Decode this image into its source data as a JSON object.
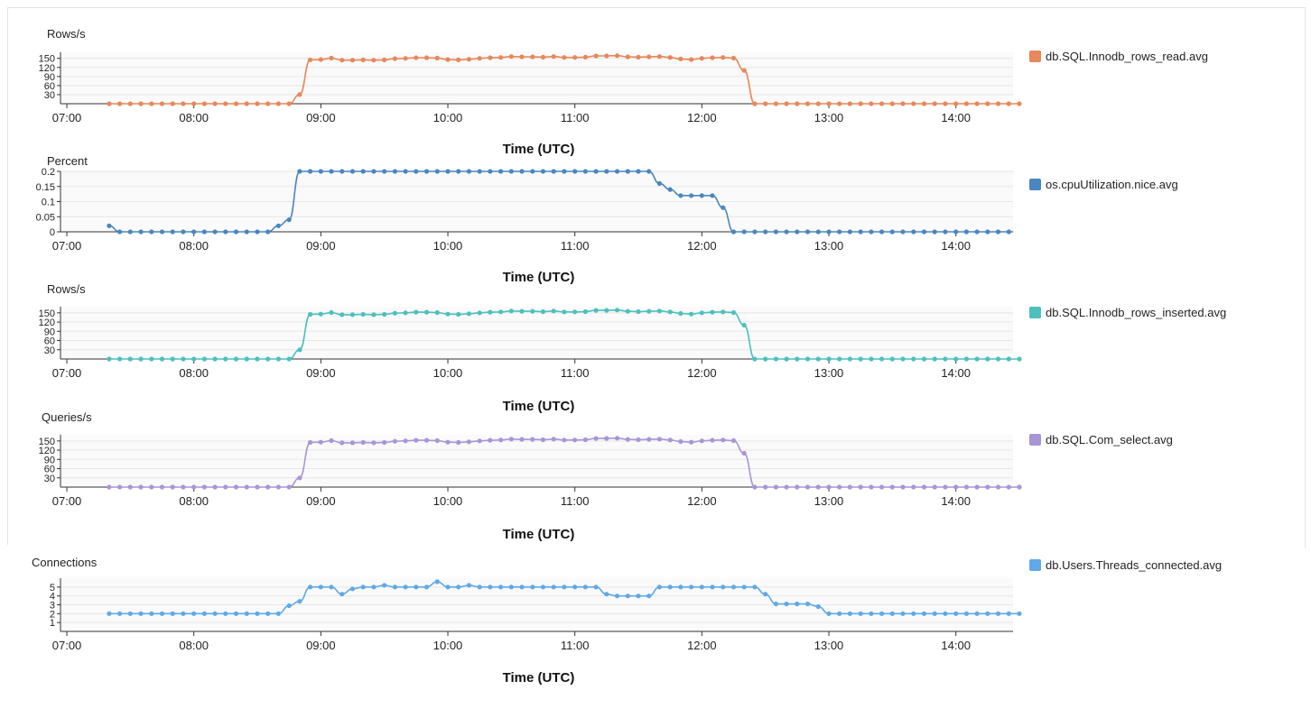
{
  "chart_data": [
    {
      "type": "line",
      "ylabel": "Rows/s",
      "xlabel": "Time (UTC)",
      "x_ticks": [
        "07:00",
        "08:00",
        "09:00",
        "10:00",
        "11:00",
        "12:00",
        "13:00",
        "14:00"
      ],
      "y_ticks": [
        "30",
        "60",
        "90",
        "120",
        "150"
      ],
      "y_range": [
        0,
        170
      ],
      "x_range_hours": [
        6.95,
        14.45
      ],
      "x_start_hour": 7.333,
      "x_step_minutes": 5,
      "grid": true,
      "legend_position": "right",
      "series": [
        {
          "name": "db.SQL.Innodb_rows_read.avg",
          "color": "#e8875a",
          "values": [
            0,
            0,
            0,
            0,
            0,
            0,
            0,
            0,
            0,
            0,
            0,
            0,
            0,
            0,
            0,
            0,
            0,
            0,
            30,
            145,
            146,
            151,
            144,
            144,
            145,
            144,
            145,
            149,
            150,
            152,
            152,
            151,
            146,
            145,
            147,
            150,
            152,
            153,
            156,
            155,
            155,
            154,
            156,
            153,
            153,
            154,
            158,
            158,
            159,
            155,
            154,
            155,
            156,
            153,
            148,
            146,
            150,
            152,
            153,
            151,
            110,
            0,
            0,
            0,
            0,
            0,
            0,
            0,
            0,
            0,
            0,
            0,
            0,
            0,
            0,
            0,
            0,
            0,
            0,
            0,
            0,
            0,
            0,
            0,
            0,
            0,
            0
          ]
        }
      ]
    },
    {
      "type": "line",
      "ylabel": "Percent",
      "xlabel": "Time (UTC)",
      "x_ticks": [
        "07:00",
        "08:00",
        "09:00",
        "10:00",
        "11:00",
        "12:00",
        "13:00",
        "14:00"
      ],
      "y_ticks": [
        "0",
        "0.05",
        "0.1",
        "0.15",
        "0.2"
      ],
      "y_range": [
        0,
        0.2
      ],
      "x_range_hours": [
        6.95,
        14.45
      ],
      "x_start_hour": 7.333,
      "x_step_minutes": 5,
      "grid": true,
      "legend_position": "right",
      "series": [
        {
          "name": "os.cpuUtilization.nice.avg",
          "color": "#4a86c0",
          "values": [
            0.02,
            0,
            0,
            0,
            0,
            0,
            0,
            0,
            0,
            0,
            0,
            0,
            0,
            0,
            0,
            0,
            0.02,
            0.04,
            0.2,
            0.2,
            0.2,
            0.2,
            0.2,
            0.2,
            0.2,
            0.2,
            0.2,
            0.2,
            0.2,
            0.2,
            0.2,
            0.2,
            0.2,
            0.2,
            0.2,
            0.2,
            0.2,
            0.2,
            0.2,
            0.2,
            0.2,
            0.2,
            0.2,
            0.2,
            0.2,
            0.2,
            0.2,
            0.2,
            0.2,
            0.2,
            0.2,
            0.2,
            0.16,
            0.14,
            0.12,
            0.12,
            0.12,
            0.12,
            0.08,
            0,
            0,
            0,
            0,
            0,
            0,
            0,
            0,
            0,
            0,
            0,
            0,
            0,
            0,
            0,
            0,
            0,
            0,
            0,
            0,
            0,
            0,
            0,
            0,
            0,
            0,
            0
          ]
        }
      ]
    },
    {
      "type": "line",
      "ylabel": "Rows/s",
      "xlabel": "Time (UTC)",
      "x_ticks": [
        "07:00",
        "08:00",
        "09:00",
        "10:00",
        "11:00",
        "12:00",
        "13:00",
        "14:00"
      ],
      "y_ticks": [
        "30",
        "60",
        "90",
        "120",
        "150"
      ],
      "y_range": [
        0,
        170
      ],
      "x_range_hours": [
        6.95,
        14.45
      ],
      "x_start_hour": 7.333,
      "x_step_minutes": 5,
      "grid": true,
      "legend_position": "right",
      "series": [
        {
          "name": "db.SQL.Innodb_rows_inserted.avg",
          "color": "#4cc0bd",
          "values": [
            0,
            0,
            0,
            0,
            0,
            0,
            0,
            0,
            0,
            0,
            0,
            0,
            0,
            0,
            0,
            0,
            0,
            0,
            30,
            145,
            146,
            151,
            144,
            144,
            145,
            144,
            145,
            149,
            150,
            152,
            152,
            151,
            146,
            145,
            147,
            150,
            152,
            153,
            156,
            155,
            155,
            154,
            156,
            153,
            153,
            154,
            158,
            158,
            159,
            155,
            154,
            155,
            156,
            153,
            148,
            146,
            150,
            152,
            153,
            151,
            110,
            0,
            0,
            0,
            0,
            0,
            0,
            0,
            0,
            0,
            0,
            0,
            0,
            0,
            0,
            0,
            0,
            0,
            0,
            0,
            0,
            0,
            0,
            0,
            0,
            0,
            0
          ]
        }
      ]
    },
    {
      "type": "line",
      "ylabel": "Queries/s",
      "xlabel": "Time (UTC)",
      "x_ticks": [
        "07:00",
        "08:00",
        "09:00",
        "10:00",
        "11:00",
        "12:00",
        "13:00",
        "14:00"
      ],
      "y_ticks": [
        "30",
        "60",
        "90",
        "120",
        "150"
      ],
      "y_range": [
        0,
        170
      ],
      "x_range_hours": [
        6.95,
        14.45
      ],
      "x_start_hour": 7.333,
      "x_step_minutes": 5,
      "grid": true,
      "legend_position": "right",
      "series": [
        {
          "name": "db.SQL.Com_select.avg",
          "color": "#a995d6",
          "values": [
            0,
            0,
            0,
            0,
            0,
            0,
            0,
            0,
            0,
            0,
            0,
            0,
            0,
            0,
            0,
            0,
            0,
            0,
            30,
            145,
            146,
            151,
            144,
            144,
            145,
            144,
            145,
            149,
            150,
            152,
            152,
            151,
            146,
            145,
            147,
            150,
            152,
            153,
            156,
            155,
            155,
            154,
            156,
            153,
            153,
            154,
            158,
            158,
            159,
            155,
            154,
            155,
            156,
            153,
            148,
            146,
            150,
            152,
            153,
            151,
            110,
            0,
            0,
            0,
            0,
            0,
            0,
            0,
            0,
            0,
            0,
            0,
            0,
            0,
            0,
            0,
            0,
            0,
            0,
            0,
            0,
            0,
            0,
            0,
            0,
            0,
            0
          ]
        }
      ]
    },
    {
      "type": "line",
      "ylabel": "Connections",
      "xlabel": "Time (UTC)",
      "x_ticks": [
        "07:00",
        "08:00",
        "09:00",
        "10:00",
        "11:00",
        "12:00",
        "13:00",
        "14:00"
      ],
      "y_ticks": [
        "1",
        "2",
        "3",
        "4",
        "5"
      ],
      "y_range": [
        0,
        6
      ],
      "x_range_hours": [
        6.95,
        14.45
      ],
      "x_start_hour": 7.333,
      "x_step_minutes": 5,
      "grid": true,
      "legend_position": "right",
      "series": [
        {
          "name": "db.Users.Threads_connected.avg",
          "color": "#5fa9e6",
          "values": [
            2,
            2,
            2,
            2,
            2,
            2,
            2,
            2,
            2,
            2,
            2,
            2,
            2,
            2,
            2,
            2,
            2,
            2.9,
            3.4,
            5,
            5,
            5,
            4.2,
            4.8,
            5,
            5,
            5.2,
            5,
            5,
            5,
            5,
            5.6,
            5,
            5,
            5.2,
            5,
            5,
            5,
            5,
            5,
            5,
            5,
            5,
            5,
            5,
            5,
            5,
            4.2,
            4,
            4,
            4,
            4,
            5,
            5,
            5,
            5,
            5,
            5,
            5,
            5,
            5,
            5,
            4.2,
            3.1,
            3.1,
            3.1,
            3.1,
            2.8,
            2,
            2,
            2,
            2,
            2,
            2,
            2,
            2,
            2,
            2,
            2,
            2,
            2,
            2,
            2,
            2,
            2,
            2,
            2
          ]
        }
      ]
    }
  ]
}
